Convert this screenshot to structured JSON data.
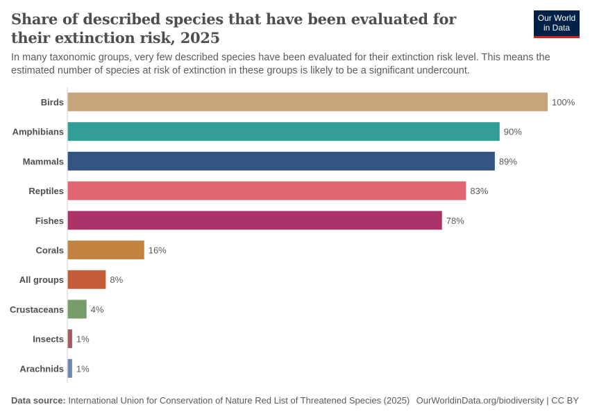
{
  "header": {
    "title": "Share of described species that have been evaluated for their extinction risk, 2025",
    "subtitle": "In many taxonomic groups, very few described species have been evaluated for their extinction risk level. This means the estimated number of species at risk of extinction in these groups is likely to be a significant undercount.",
    "logo_text": "Our World in Data"
  },
  "footer": {
    "source_label": "Data source:",
    "source_text": "International Union for Conservation of Nature Red List of Threatened Species (2025)",
    "credit": "OurWorldinData.org/biodiversity | CC BY"
  },
  "chart_data": {
    "type": "bar",
    "orientation": "horizontal",
    "unit": "%",
    "xlim": [
      0,
      100
    ],
    "grid": false,
    "categories": [
      "Birds",
      "Amphibians",
      "Mammals",
      "Reptiles",
      "Fishes",
      "Corals",
      "All groups",
      "Crustaceans",
      "Insects",
      "Arachnids"
    ],
    "values": [
      100,
      90,
      89,
      83,
      78,
      16,
      8,
      4,
      1,
      1
    ],
    "labels": [
      "100%",
      "90%",
      "89%",
      "83%",
      "78%",
      "16%",
      "8%",
      "4%",
      "1%",
      "1%"
    ],
    "colors": [
      "#c8a47a",
      "#339e97",
      "#325581",
      "#e26573",
      "#ac336a",
      "#c3823f",
      "#c35d39",
      "#789b6a",
      "#a6595f",
      "#6e87b5"
    ]
  }
}
